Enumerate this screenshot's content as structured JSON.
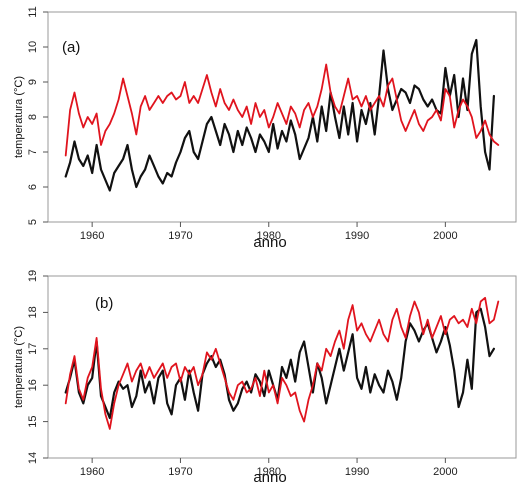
{
  "chart_data": [
    {
      "type": "line",
      "panel_label": "(a)",
      "xlabel": "anno",
      "ylabel": "temperatura (°C)",
      "xlim": [
        1955,
        2008
      ],
      "ylim": [
        5,
        11
      ],
      "xticks": [
        1960,
        1970,
        1980,
        1990,
        2000
      ],
      "yticks": [
        5,
        6,
        7,
        8,
        9,
        10,
        11
      ],
      "grid": false,
      "series": [
        {
          "color": "#111111",
          "x": [
            1957.0,
            1957.5,
            1958.0,
            1958.5,
            1959.0,
            1959.5,
            1960.0,
            1960.5,
            1961.0,
            1961.5,
            1962.0,
            1962.5,
            1963.0,
            1963.5,
            1964.0,
            1964.5,
            1965.0,
            1965.5,
            1966.0,
            1966.5,
            1967.0,
            1967.5,
            1968.0,
            1968.5,
            1969.0,
            1969.5,
            1970.0,
            1970.5,
            1971.0,
            1971.5,
            1972.0,
            1972.5,
            1973.0,
            1973.5,
            1974.0,
            1974.5,
            1975.0,
            1975.5,
            1976.0,
            1976.5,
            1977.0,
            1977.5,
            1978.0,
            1978.5,
            1979.0,
            1979.5,
            1980.0,
            1980.5,
            1981.0,
            1981.5,
            1982.0,
            1982.5,
            1983.0,
            1983.5,
            1984.0,
            1984.5,
            1985.0,
            1985.5,
            1986.0,
            1986.5,
            1987.0,
            1987.5,
            1988.0,
            1988.5,
            1989.0,
            1989.5,
            1990.0,
            1990.5,
            1991.0,
            1991.5,
            1992.0,
            1992.5,
            1993.0,
            1993.5,
            1994.0,
            1994.5,
            1995.0,
            1995.5,
            1996.0,
            1996.5,
            1997.0,
            1997.5,
            1998.0,
            1998.5,
            1999.0,
            1999.5,
            2000.0,
            2000.5,
            2001.0,
            2001.5,
            2002.0,
            2002.5,
            2003.0,
            2003.5,
            2004.0,
            2004.5,
            2005.0,
            2005.5
          ],
          "values": [
            6.3,
            6.7,
            7.3,
            6.8,
            6.6,
            6.9,
            6.4,
            7.2,
            6.5,
            6.2,
            5.9,
            6.4,
            6.6,
            6.8,
            7.2,
            6.5,
            6.0,
            6.3,
            6.5,
            6.9,
            6.6,
            6.3,
            6.1,
            6.4,
            6.3,
            6.7,
            7.0,
            7.4,
            7.6,
            7.0,
            6.8,
            7.3,
            7.8,
            8.0,
            7.6,
            7.2,
            7.8,
            7.5,
            7.0,
            7.6,
            7.2,
            7.7,
            7.4,
            7.0,
            7.5,
            7.3,
            7.0,
            7.8,
            7.1,
            7.6,
            7.3,
            7.9,
            7.5,
            6.8,
            7.1,
            7.4,
            8.0,
            7.3,
            8.3,
            7.6,
            8.7,
            8.0,
            7.4,
            8.3,
            7.5,
            8.4,
            7.3,
            8.2,
            7.8,
            8.4,
            7.5,
            8.6,
            9.9,
            8.8,
            8.2,
            8.5,
            8.8,
            8.7,
            8.4,
            8.9,
            8.8,
            8.5,
            8.3,
            8.5,
            8.2,
            8.1,
            9.4,
            8.6,
            9.2,
            8.0,
            9.1,
            8.2,
            9.8,
            10.2,
            8.3,
            7.0,
            6.5,
            8.6
          ]
        },
        {
          "color": "#e0141e",
          "x": [
            1957.0,
            1957.5,
            1958.0,
            1958.5,
            1959.0,
            1959.5,
            1960.0,
            1960.5,
            1961.0,
            1961.5,
            1962.0,
            1962.5,
            1963.0,
            1963.5,
            1964.0,
            1964.5,
            1965.0,
            1965.5,
            1966.0,
            1966.5,
            1967.0,
            1967.5,
            1968.0,
            1968.5,
            1969.0,
            1969.5,
            1970.0,
            1970.5,
            1971.0,
            1971.5,
            1972.0,
            1972.5,
            1973.0,
            1973.5,
            1974.0,
            1974.5,
            1975.0,
            1975.5,
            1976.0,
            1976.5,
            1977.0,
            1977.5,
            1978.0,
            1978.5,
            1979.0,
            1979.5,
            1980.0,
            1980.5,
            1981.0,
            1981.5,
            1982.0,
            1982.5,
            1983.0,
            1983.5,
            1984.0,
            1984.5,
            1985.0,
            1985.5,
            1986.0,
            1986.5,
            1987.0,
            1987.5,
            1988.0,
            1988.5,
            1989.0,
            1989.5,
            1990.0,
            1990.5,
            1991.0,
            1991.5,
            1992.0,
            1992.5,
            1993.0,
            1993.5,
            1994.0,
            1994.5,
            1995.0,
            1995.5,
            1996.0,
            1996.5,
            1997.0,
            1997.5,
            1998.0,
            1998.5,
            1999.0,
            1999.5,
            2000.0,
            2000.5,
            2001.0,
            2001.5,
            2002.0,
            2002.5,
            2003.0,
            2003.5,
            2004.0,
            2004.5,
            2005.0,
            2005.5,
            2006.0
          ],
          "values": [
            6.9,
            8.2,
            8.7,
            8.1,
            7.7,
            8.0,
            7.8,
            8.1,
            7.2,
            7.6,
            7.8,
            8.1,
            8.5,
            9.1,
            8.6,
            8.1,
            7.5,
            8.3,
            8.6,
            8.2,
            8.4,
            8.6,
            8.4,
            8.6,
            8.7,
            8.5,
            8.6,
            9.0,
            8.4,
            8.6,
            8.4,
            8.8,
            9.2,
            8.7,
            8.3,
            8.8,
            8.4,
            8.2,
            8.5,
            8.2,
            8.0,
            8.3,
            7.8,
            8.4,
            8.0,
            8.2,
            7.7,
            8.0,
            8.4,
            8.1,
            7.8,
            8.3,
            8.1,
            7.7,
            8.2,
            8.4,
            8.0,
            8.3,
            8.8,
            9.5,
            8.7,
            8.3,
            8.1,
            8.6,
            9.1,
            8.5,
            8.6,
            8.3,
            8.6,
            8.2,
            8.4,
            8.6,
            8.3,
            8.9,
            9.1,
            8.5,
            7.9,
            7.6,
            7.9,
            8.2,
            7.8,
            7.6,
            7.9,
            8.0,
            8.2,
            7.9,
            8.8,
            8.6,
            7.7,
            8.2,
            8.5,
            8.3,
            8.0,
            7.4,
            7.6,
            7.9,
            7.5,
            7.3,
            7.2
          ]
        }
      ]
    },
    {
      "type": "line",
      "panel_label": "(b)",
      "xlabel": "anno",
      "ylabel": "temperatura (°C)",
      "xlim": [
        1955,
        2008
      ],
      "ylim": [
        14,
        19
      ],
      "xticks": [
        1960,
        1970,
        1980,
        1990,
        2000
      ],
      "yticks": [
        14,
        15,
        16,
        17,
        18,
        19
      ],
      "grid": false,
      "series": [
        {
          "color": "#111111",
          "x": [
            1957.0,
            1957.5,
            1958.0,
            1958.5,
            1959.0,
            1959.5,
            1960.0,
            1960.5,
            1961.0,
            1961.5,
            1962.0,
            1962.5,
            1963.0,
            1963.5,
            1964.0,
            1964.5,
            1965.0,
            1965.5,
            1966.0,
            1966.5,
            1967.0,
            1967.5,
            1968.0,
            1968.5,
            1969.0,
            1969.5,
            1970.0,
            1970.5,
            1971.0,
            1971.5,
            1972.0,
            1972.5,
            1973.0,
            1973.5,
            1974.0,
            1974.5,
            1975.0,
            1975.5,
            1976.0,
            1976.5,
            1977.0,
            1977.5,
            1978.0,
            1978.5,
            1979.0,
            1979.5,
            1980.0,
            1980.5,
            1981.0,
            1981.5,
            1982.0,
            1982.5,
            1983.0,
            1983.5,
            1984.0,
            1984.5,
            1985.0,
            1985.5,
            1986.0,
            1986.5,
            1987.0,
            1987.5,
            1988.0,
            1988.5,
            1989.0,
            1989.5,
            1990.0,
            1990.5,
            1991.0,
            1991.5,
            1992.0,
            1992.5,
            1993.0,
            1993.5,
            1994.0,
            1994.5,
            1995.0,
            1995.5,
            1996.0,
            1996.5,
            1997.0,
            1997.5,
            1998.0,
            1998.5,
            1999.0,
            1999.5,
            2000.0,
            2000.5,
            2001.0,
            2001.5,
            2002.0,
            2002.5,
            2003.0,
            2003.5,
            2004.0,
            2004.5,
            2005.0,
            2005.5
          ],
          "values": [
            15.8,
            16.2,
            16.7,
            15.8,
            15.5,
            16.0,
            16.2,
            17.2,
            15.7,
            15.4,
            15.1,
            15.8,
            16.1,
            15.9,
            16.0,
            15.4,
            15.7,
            16.4,
            15.8,
            16.1,
            15.5,
            16.2,
            16.4,
            15.5,
            15.2,
            16.0,
            16.2,
            15.6,
            16.4,
            15.8,
            15.3,
            16.3,
            16.6,
            16.8,
            16.5,
            16.7,
            16.3,
            15.6,
            15.3,
            15.5,
            15.9,
            16.1,
            15.8,
            16.3,
            16.1,
            15.7,
            16.4,
            16.0,
            15.6,
            16.5,
            16.2,
            16.7,
            16.1,
            16.9,
            17.2,
            16.5,
            15.8,
            16.6,
            16.2,
            15.5,
            16.0,
            16.5,
            17.0,
            16.4,
            16.9,
            17.4,
            16.2,
            15.9,
            16.5,
            15.8,
            16.3,
            16.0,
            15.8,
            16.4,
            16.1,
            15.6,
            16.2,
            17.2,
            17.7,
            17.5,
            17.2,
            17.5,
            17.7,
            17.3,
            16.9,
            17.2,
            17.6,
            17.1,
            16.4,
            15.4,
            15.8,
            16.7,
            15.9,
            18.0,
            18.1,
            17.6,
            16.8,
            17.0
          ]
        },
        {
          "color": "#e0141e",
          "x": [
            1957.0,
            1957.5,
            1958.0,
            1958.5,
            1959.0,
            1959.5,
            1960.0,
            1960.5,
            1961.0,
            1961.5,
            1962.0,
            1962.5,
            1963.0,
            1963.5,
            1964.0,
            1964.5,
            1965.0,
            1965.5,
            1966.0,
            1966.5,
            1967.0,
            1967.5,
            1968.0,
            1968.5,
            1969.0,
            1969.5,
            1970.0,
            1970.5,
            1971.0,
            1971.5,
            1972.0,
            1972.5,
            1973.0,
            1973.5,
            1974.0,
            1974.5,
            1975.0,
            1975.5,
            1976.0,
            1976.5,
            1977.0,
            1977.5,
            1978.0,
            1978.5,
            1979.0,
            1979.5,
            1980.0,
            1980.5,
            1981.0,
            1981.5,
            1982.0,
            1982.5,
            1983.0,
            1983.5,
            1984.0,
            1984.5,
            1985.0,
            1985.5,
            1986.0,
            1986.5,
            1987.0,
            1987.5,
            1988.0,
            1988.5,
            1989.0,
            1989.5,
            1990.0,
            1990.5,
            1991.0,
            1991.5,
            1992.0,
            1992.5,
            1993.0,
            1993.5,
            1994.0,
            1994.5,
            1995.0,
            1995.5,
            1996.0,
            1996.5,
            1997.0,
            1997.5,
            1998.0,
            1998.5,
            1999.0,
            1999.5,
            2000.0,
            2000.5,
            2001.0,
            2001.5,
            2002.0,
            2002.5,
            2003.0,
            2003.5,
            2004.0,
            2004.5,
            2005.0,
            2005.5,
            2006.0
          ],
          "values": [
            15.5,
            16.3,
            16.8,
            15.9,
            15.6,
            16.2,
            16.5,
            17.3,
            15.9,
            15.2,
            14.8,
            15.5,
            16.0,
            16.3,
            16.6,
            16.1,
            16.4,
            16.6,
            16.2,
            16.5,
            16.2,
            16.4,
            16.6,
            16.2,
            16.5,
            16.6,
            16.1,
            16.5,
            16.3,
            16.5,
            16.0,
            16.3,
            16.9,
            16.7,
            17.0,
            16.6,
            16.2,
            15.8,
            15.6,
            16.0,
            16.1,
            15.8,
            15.9,
            16.2,
            15.7,
            16.4,
            15.8,
            16.0,
            15.5,
            16.2,
            16.0,
            15.7,
            15.8,
            15.3,
            15.0,
            15.6,
            16.0,
            16.6,
            16.4,
            17.0,
            16.8,
            17.2,
            17.5,
            17.0,
            17.8,
            18.2,
            17.5,
            17.7,
            17.4,
            17.2,
            17.5,
            17.8,
            17.4,
            17.2,
            17.8,
            18.1,
            17.6,
            17.3,
            17.9,
            18.3,
            18.0,
            17.4,
            17.8,
            17.3,
            17.6,
            17.9,
            17.4,
            17.8,
            17.9,
            17.7,
            17.8,
            17.6,
            18.1,
            17.7,
            18.3,
            18.4,
            17.7,
            17.8,
            18.3
          ]
        }
      ]
    }
  ]
}
